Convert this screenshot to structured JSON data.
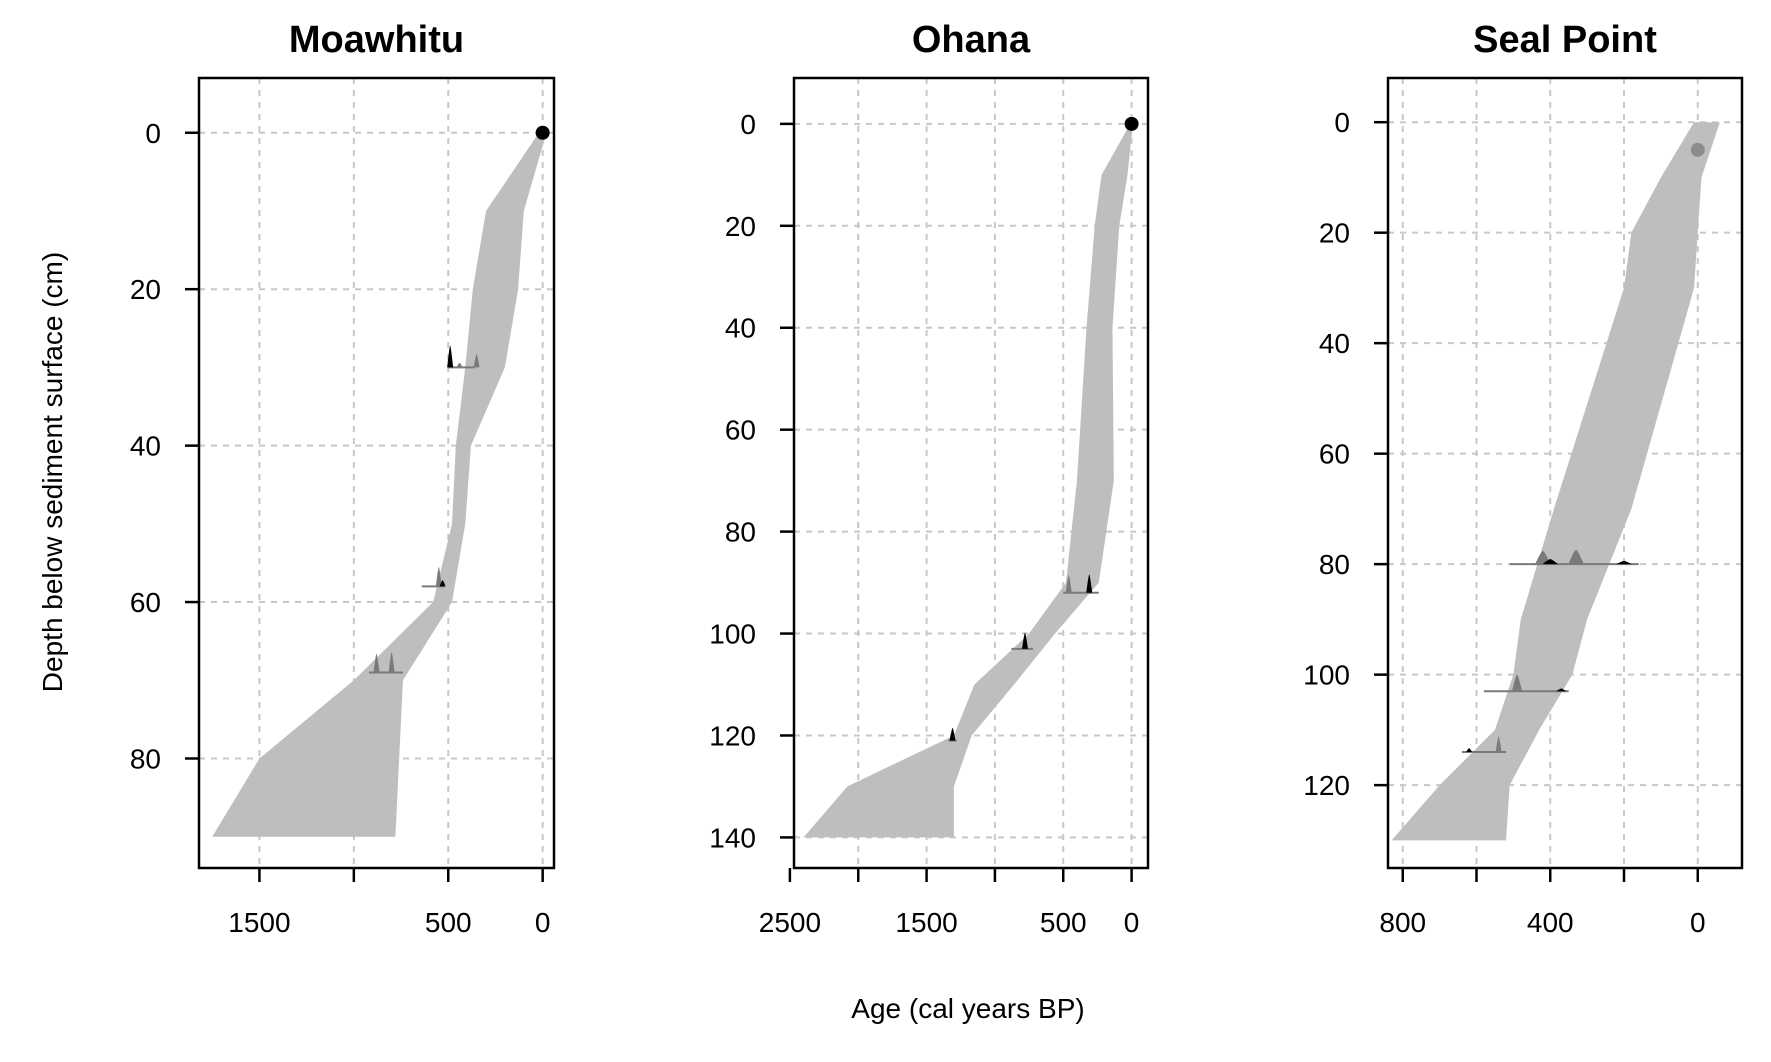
{
  "figure": {
    "ylabel": "Depth below sediment surface (cm)",
    "xlabel": "Age (cal years BP)"
  },
  "colors": {
    "envelope": "#bebebe",
    "density_dark": "#000000",
    "density_mid": "#7a7a7a",
    "point_black": "#000000",
    "point_grey": "#8c8c8c",
    "grid": "#c8c8c8"
  },
  "chart_data": [
    {
      "type": "area",
      "title": "Moawhitu",
      "xlim": [
        1820,
        -60
      ],
      "ylim": [
        94,
        -7
      ],
      "x_reversed": true,
      "y_reversed": true,
      "xticks": [
        1500,
        1000,
        500,
        0
      ],
      "xtick_labels": [
        "1500",
        "",
        "500",
        "0"
      ],
      "xgrid": [
        1500,
        1000,
        500,
        0
      ],
      "yticks": [
        0,
        20,
        40,
        60,
        80
      ],
      "ygrid": [
        0,
        20,
        40,
        60,
        80
      ],
      "grid": true,
      "envelope": {
        "depth": [
          0,
          10,
          20,
          30,
          40,
          50,
          60,
          70,
          80,
          90
        ],
        "older": [
          20,
          300,
          370,
          410,
          460,
          480,
          580,
          1000,
          1500,
          1750
        ],
        "younger": [
          -20,
          100,
          130,
          200,
          380,
          410,
          480,
          740,
          760,
          780
        ]
      },
      "surface_point": {
        "age": 0,
        "depth": 0,
        "color": "black"
      },
      "dates": [
        {
          "depth": 30,
          "min_age": 360,
          "max_age": 500,
          "peaks": [
            {
              "age": 490,
              "h": 2.8,
              "dark": true
            },
            {
              "age": 350,
              "h": 1.7,
              "dark": false
            },
            {
              "age": 440,
              "h": 0.6,
              "dark": false
            }
          ]
        },
        {
          "depth": 58,
          "min_age": 520,
          "max_age": 640,
          "peaks": [
            {
              "age": 550,
              "h": 2.5,
              "dark": false
            },
            {
              "age": 530,
              "h": 0.8,
              "dark": true
            }
          ]
        },
        {
          "depth": 69,
          "min_age": 740,
          "max_age": 920,
          "peaks": [
            {
              "age": 880,
              "h": 2.4,
              "dark": false
            },
            {
              "age": 800,
              "h": 2.6,
              "dark": false
            }
          ]
        }
      ]
    },
    {
      "type": "area",
      "title": "Ohana",
      "xlim": [
        2470,
        -120
      ],
      "ylim": [
        146,
        -9
      ],
      "x_reversed": true,
      "y_reversed": true,
      "xticks": [
        2500,
        2000,
        1500,
        1000,
        500,
        0
      ],
      "xtick_labels": [
        "2500",
        "",
        "1500",
        "",
        "500",
        "0"
      ],
      "xgrid": [
        2000,
        1500,
        1000,
        500,
        0
      ],
      "yticks": [
        0,
        20,
        40,
        60,
        80,
        100,
        120,
        140
      ],
      "ygrid": [
        0,
        20,
        40,
        60,
        80,
        100,
        120,
        140
      ],
      "grid": true,
      "envelope": {
        "depth": [
          0,
          10,
          20,
          40,
          70,
          90,
          100,
          110,
          120,
          130,
          140
        ],
        "older": [
          10,
          220,
          270,
          330,
          400,
          480,
          750,
          1150,
          1300,
          2080,
          2400
        ],
        "younger": [
          -10,
          30,
          90,
          140,
          130,
          240,
          560,
          860,
          1170,
          1300,
          1300
        ]
      },
      "surface_point": {
        "age": 0,
        "depth": 0,
        "color": "black"
      },
      "dates": [
        {
          "depth": 92,
          "min_age": 240,
          "max_age": 500,
          "peaks": [
            {
              "age": 460,
              "h": 3.5,
              "dark": false
            },
            {
              "age": 310,
              "h": 3.6,
              "dark": true
            }
          ]
        },
        {
          "depth": 103,
          "min_age": 720,
          "max_age": 880,
          "peaks": [
            {
              "age": 780,
              "h": 3.2,
              "dark": true
            }
          ]
        },
        {
          "depth": 121,
          "min_age": 1280,
          "max_age": 1340,
          "peaks": [
            {
              "age": 1310,
              "h": 2.5,
              "dark": true
            }
          ]
        }
      ]
    },
    {
      "type": "area",
      "title": "Seal Point",
      "xlim": [
        840,
        -120
      ],
      "ylim": [
        135,
        -8
      ],
      "x_reversed": true,
      "y_reversed": true,
      "xticks": [
        800,
        600,
        400,
        200,
        0
      ],
      "xtick_labels": [
        "800",
        "",
        "400",
        "",
        "0"
      ],
      "xgrid": [
        800,
        600,
        400,
        200,
        0
      ],
      "yticks": [
        0,
        20,
        40,
        60,
        80,
        100,
        120
      ],
      "ygrid": [
        0,
        20,
        40,
        60,
        80,
        100,
        120
      ],
      "grid": true,
      "envelope": {
        "depth": [
          0,
          10,
          20,
          30,
          70,
          90,
          100,
          110,
          120,
          130
        ],
        "older": [
          10,
          100,
          180,
          200,
          390,
          480,
          500,
          550,
          700,
          830
        ],
        "younger": [
          -60,
          -10,
          0,
          10,
          180,
          300,
          340,
          430,
          510,
          520
        ]
      },
      "surface_point": {
        "age": 0,
        "depth": 5,
        "color": "grey"
      },
      "dates": [
        {
          "depth": 80,
          "min_age": 160,
          "max_age": 510,
          "peaks": [
            {
              "age": 420,
              "h": 2.4,
              "dark": false
            },
            {
              "age": 330,
              "h": 2.6,
              "dark": false
            },
            {
              "age": 400,
              "h": 0.9,
              "dark": true
            },
            {
              "age": 200,
              "h": 0.6,
              "dark": true
            }
          ]
        },
        {
          "depth": 103,
          "min_age": 350,
          "max_age": 580,
          "peaks": [
            {
              "age": 490,
              "h": 3.0,
              "dark": false
            },
            {
              "age": 370,
              "h": 0.5,
              "dark": true
            }
          ]
        },
        {
          "depth": 114,
          "min_age": 520,
          "max_age": 640,
          "peaks": [
            {
              "age": 540,
              "h": 2.8,
              "dark": false
            },
            {
              "age": 620,
              "h": 0.7,
              "dark": true
            }
          ]
        }
      ]
    }
  ]
}
